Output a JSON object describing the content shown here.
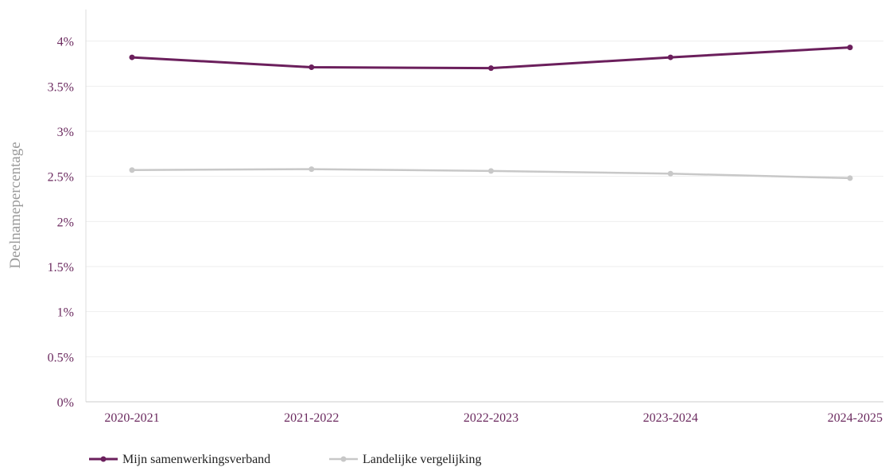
{
  "chart_data": {
    "type": "line",
    "categories": [
      "2020-2021",
      "2021-2022",
      "2022-2023",
      "2023-2024",
      "2024-2025"
    ],
    "series": [
      {
        "name": "Mijn samenwerkingsverband",
        "values": [
          3.82,
          3.71,
          3.7,
          3.82,
          3.93
        ],
        "color": "#6b1f5c"
      },
      {
        "name": "Landelijke vergelijking",
        "values": [
          2.57,
          2.58,
          2.56,
          2.53,
          2.48
        ],
        "color": "#c8c8c8"
      }
    ],
    "ylabel": "Deelnamepercentage",
    "ylim": [
      0,
      4.35
    ],
    "yticks": [
      0,
      0.5,
      1,
      1.5,
      2,
      2.5,
      3,
      3.5,
      4
    ],
    "ytick_labels": [
      "0%",
      "0.5%",
      "1%",
      "1.5%",
      "2%",
      "2.5%",
      "3%",
      "3.5%",
      "4%"
    ],
    "grid": true,
    "legend_position": "bottom-left"
  }
}
